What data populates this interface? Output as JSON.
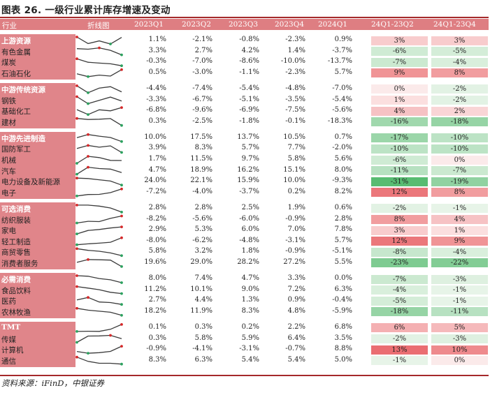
{
  "title": "图表 26. 一级行业累计库存增速及变动",
  "source": "资料来源：iFinD，中银证券",
  "headers": [
    "行业",
    "折线图",
    "2023Q1",
    "2023Q2",
    "2023Q3",
    "2023Q4",
    "2024Q1",
    "24Q1-23Q2",
    "24Q1-23Q4"
  ],
  "groups": [
    {
      "rows": [
        {
          "name": "上游资源",
          "values": [
            "1.1%",
            "-2.1%",
            "-0.8%",
            "-2.3%",
            "0.9%"
          ],
          "d1": "3%",
          "d2": "3%"
        },
        {
          "name": "有色金属",
          "values": [
            "3.3%",
            "2.7%",
            "4.2%",
            "1.4%",
            "-3.7%"
          ],
          "d1": "-6%",
          "d2": "-5%"
        },
        {
          "name": "煤炭",
          "values": [
            "-0.3%",
            "-7.0%",
            "-8.6%",
            "-10.0%",
            "-13.7%"
          ],
          "d1": "-7%",
          "d2": "-4%"
        },
        {
          "name": "石油石化",
          "values": [
            "0.5%",
            "-3.0%",
            "-1.1%",
            "-2.3%",
            "5.7%"
          ],
          "d1": "9%",
          "d2": "8%"
        }
      ]
    },
    {
      "rows": [
        {
          "name": "中游传统资源",
          "values": [
            "-4.4%",
            "-7.4%",
            "-5.4%",
            "-4.8%",
            "-7.0%"
          ],
          "d1": "0%",
          "d2": "-2%"
        },
        {
          "name": "钢铁",
          "values": [
            "-3.3%",
            "-6.7%",
            "-5.1%",
            "-3.5%",
            "-5.4%"
          ],
          "d1": "1%",
          "d2": "-2%"
        },
        {
          "name": "基础化工",
          "values": [
            "-6.8%",
            "-9.6%",
            "-6.9%",
            "-7.5%",
            "-5.6%"
          ],
          "d1": "4%",
          "d2": "2%"
        },
        {
          "name": "建材",
          "values": [
            "0.3%",
            "-2.5%",
            "-1.8%",
            "-0.1%",
            "-18.3%"
          ],
          "d1": "-16%",
          "d2": "-18%"
        }
      ]
    },
    {
      "rows": [
        {
          "name": "中游先进制造",
          "values": [
            "10.0%",
            "17.5%",
            "13.7%",
            "10.5%",
            "0.7%"
          ],
          "d1": "-17%",
          "d2": "-10%"
        },
        {
          "name": "国防军工",
          "values": [
            "3.9%",
            "8.3%",
            "5.7%",
            "7.7%",
            "-2.0%"
          ],
          "d1": "-10%",
          "d2": "-10%"
        },
        {
          "name": "机械",
          "values": [
            "1.7%",
            "11.5%",
            "9.7%",
            "5.8%",
            "5.6%"
          ],
          "d1": "-6%",
          "d2": "0%"
        },
        {
          "name": "汽车",
          "values": [
            "4.7%",
            "18.9%",
            "16.2%",
            "15.1%",
            "8.0%"
          ],
          "d1": "-11%",
          "d2": "-7%"
        },
        {
          "name": "电力设备及新能源",
          "values": [
            "24.0%",
            "22.1%",
            "15.9%",
            "10.0%",
            "-9.3%"
          ],
          "d1": "-31%",
          "d2": "-19%"
        },
        {
          "name": "电子",
          "values": [
            "-7.2%",
            "-4.0%",
            "-3.7%",
            "0.2%",
            "8.2%"
          ],
          "d1": "12%",
          "d2": "8%"
        }
      ]
    },
    {
      "rows": [
        {
          "name": "可选消费",
          "values": [
            "2.8%",
            "2.8%",
            "2.5%",
            "1.9%",
            "0.6%"
          ],
          "d1": "-2%",
          "d2": "-1%"
        },
        {
          "name": "纺织服装",
          "values": [
            "-8.2%",
            "-5.6%",
            "-6.0%",
            "-0.9%",
            "2.8%"
          ],
          "d1": "8%",
          "d2": "4%"
        },
        {
          "name": "家电",
          "values": [
            "2.9%",
            "5.3%",
            "6.0%",
            "7.0%",
            "7.8%"
          ],
          "d1": "3%",
          "d2": "1%"
        },
        {
          "name": "轻工制造",
          "values": [
            "-8.0%",
            "-6.2%",
            "-4.8%",
            "-3.1%",
            "5.7%"
          ],
          "d1": "12%",
          "d2": "9%"
        },
        {
          "name": "商贸零售",
          "values": [
            "5.8%",
            "3.2%",
            "1.8%",
            "-0.9%",
            "-5.1%"
          ],
          "d1": "-8%",
          "d2": "-4%"
        },
        {
          "name": "消费者服务",
          "values": [
            "19.6%",
            "29.0%",
            "28.2%",
            "27.2%",
            "5.5%"
          ],
          "d1": "-23%",
          "d2": "-22%"
        }
      ]
    },
    {
      "rows": [
        {
          "name": "必需消费",
          "values": [
            "8.0%",
            "7.4%",
            "4.7%",
            "3.3%",
            "0.0%"
          ],
          "d1": "-7%",
          "d2": "-3%"
        },
        {
          "name": "食品饮料",
          "values": [
            "11.2%",
            "10.1%",
            "9.0%",
            "7.2%",
            "6.3%"
          ],
          "d1": "-4%",
          "d2": "-1%"
        },
        {
          "name": "医药",
          "values": [
            "2.7%",
            "4.4%",
            "1.3%",
            "0.9%",
            "-0.4%"
          ],
          "d1": "-5%",
          "d2": "-1%"
        },
        {
          "name": "农林牧渔",
          "values": [
            "18.2%",
            "11.9%",
            "8.3%",
            "4.8%",
            "-5.9%"
          ],
          "d1": "-18%",
          "d2": "-11%"
        }
      ]
    },
    {
      "rows": [
        {
          "name": "TMT",
          "values": [
            "0.1%",
            "0.3%",
            "0.2%",
            "2.2%",
            "6.8%"
          ],
          "d1": "6%",
          "d2": "5%"
        },
        {
          "name": "传媒",
          "values": [
            "0.3%",
            "5.8%",
            "5.9%",
            "6.4%",
            "3.5%"
          ],
          "d1": "-2%",
          "d2": "-3%"
        },
        {
          "name": "计算机",
          "values": [
            "-0.9%",
            "-4.1%",
            "-3.1%",
            "-0.7%",
            "8.8%"
          ],
          "d1": "13%",
          "d2": "10%"
        },
        {
          "name": "通信",
          "values": [
            "8.3%",
            "6.3%",
            "5.4%",
            "5.4%",
            "5.0%"
          ],
          "d1": "-1%",
          "d2": "0%"
        }
      ]
    }
  ]
}
